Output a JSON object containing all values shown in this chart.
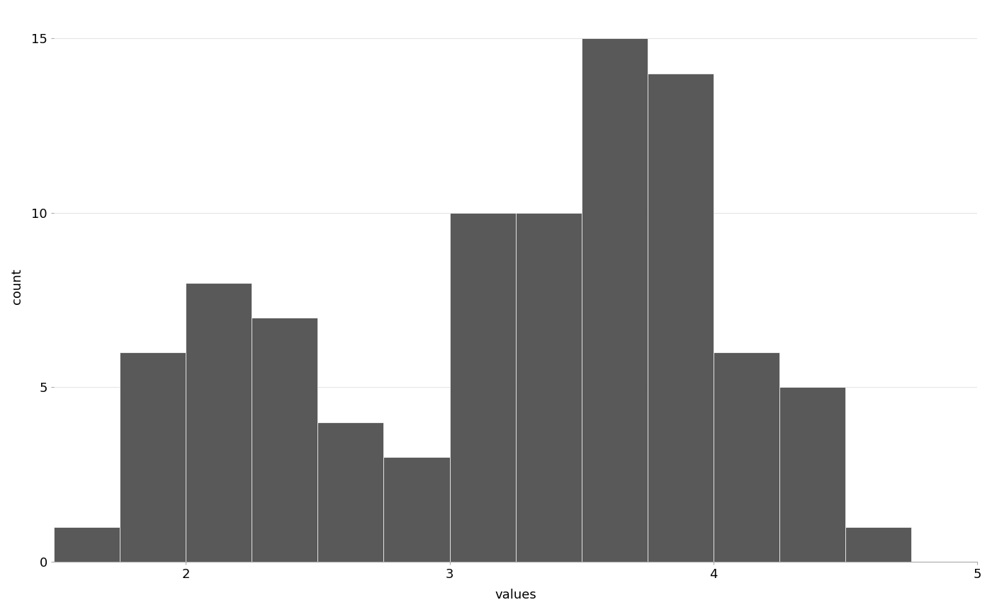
{
  "xlabel": "values",
  "ylabel": "count",
  "bar_color": "#595959",
  "bar_edgecolor": "#ffffff",
  "background_color": "#ffffff",
  "panel_background": "#ffffff",
  "grid_color": "#e5e5e5",
  "xlim": [
    1.5,
    5.0
  ],
  "ylim": [
    0,
    15.8
  ],
  "xticks": [
    2,
    3,
    4,
    5
  ],
  "yticks": [
    0,
    5,
    10,
    15
  ],
  "bin_edges": [
    1.5,
    1.75,
    2.0,
    2.25,
    2.5,
    2.75,
    3.0,
    3.25,
    3.5,
    3.75,
    4.0,
    4.25,
    4.5,
    4.75,
    5.0
  ],
  "counts": [
    1,
    6,
    8,
    7,
    4,
    3,
    10,
    10,
    15,
    14,
    6,
    5,
    1,
    0
  ],
  "title_fontsize": 24,
  "subtitle_fontsize": 14,
  "axis_label_fontsize": 13,
  "tick_fontsize": 13,
  "linewidth": 0.5
}
